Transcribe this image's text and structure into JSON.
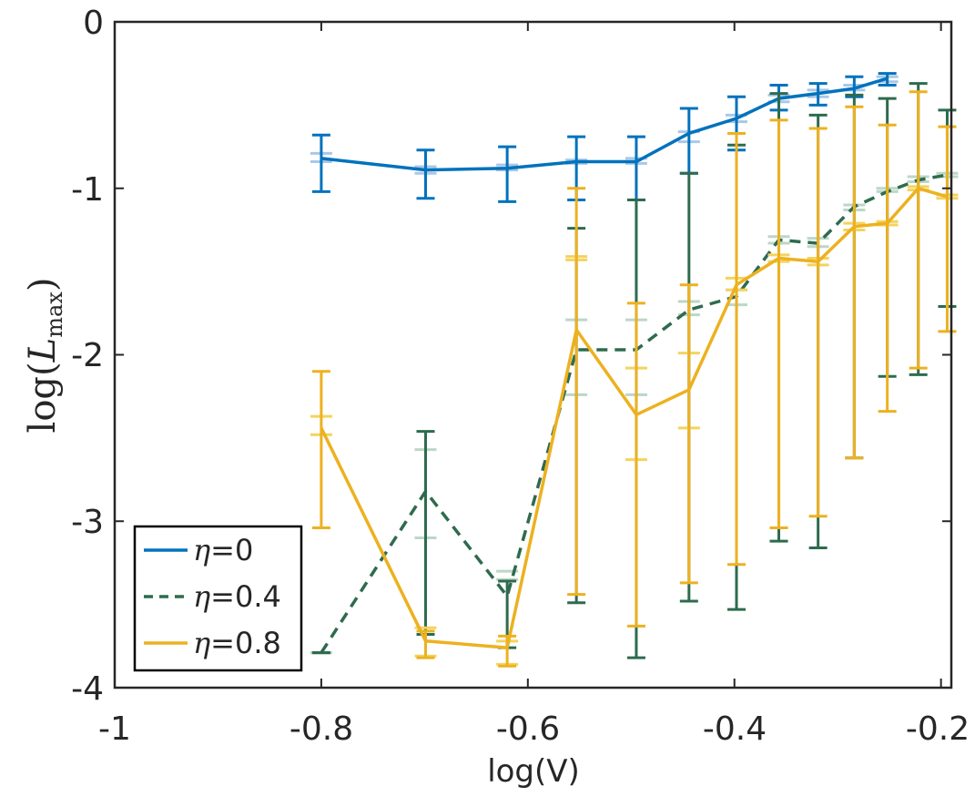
{
  "chart_data": {
    "type": "line",
    "title": "",
    "xlabel": "log(V)",
    "ylabel": {
      "func": "log",
      "var": "L",
      "sub": "max"
    },
    "xlim": [
      -1,
      -0.19
    ],
    "ylim": [
      -4,
      0
    ],
    "xticks": [
      -1,
      -0.8,
      -0.6,
      -0.4,
      -0.2
    ],
    "xtick_labels": [
      "-1",
      "-0.8",
      "-0.6",
      "-0.4",
      "-0.2"
    ],
    "yticks": [
      0,
      -1,
      -2,
      -3,
      -4
    ],
    "ytick_labels": [
      "0",
      "-1",
      "-2",
      "-3",
      "-4"
    ],
    "grid": false,
    "legend_position": "bottom-left",
    "series": [
      {
        "name": "η=0",
        "legend_eta": "η",
        "legend_value": "=0",
        "color": "#0072BD",
        "light_color": "#A9C8E8",
        "dash": "solid",
        "x": [
          -0.8,
          -0.699,
          -0.62,
          -0.553,
          -0.495,
          -0.444,
          -0.398,
          -0.357,
          -0.319,
          -0.284,
          -0.252
        ],
        "y": [
          -0.82,
          -0.89,
          -0.88,
          -0.84,
          -0.84,
          -0.67,
          -0.58,
          -0.46,
          -0.43,
          -0.4,
          -0.34
        ],
        "err_low": [
          -1.02,
          -1.06,
          -1.08,
          -1.07,
          -1.07,
          -0.91,
          -0.77,
          -0.53,
          -0.5,
          -0.45,
          -0.38
        ],
        "err_high": [
          -0.68,
          -0.77,
          -0.75,
          -0.69,
          -0.69,
          -0.52,
          -0.45,
          -0.38,
          -0.37,
          -0.33,
          -0.31
        ],
        "q_low": [
          -0.84,
          -0.91,
          -0.89,
          -0.85,
          -0.85,
          -0.72,
          -0.6,
          -0.48,
          -0.45,
          -0.41,
          -0.36
        ],
        "q_high": [
          -0.79,
          -0.87,
          -0.86,
          -0.83,
          -0.82,
          -0.66,
          -0.56,
          -0.44,
          -0.41,
          -0.38,
          -0.33
        ]
      },
      {
        "name": "η=0.4",
        "legend_eta": "η",
        "legend_value": "=0.4",
        "color": "#2E6B4E",
        "light_color": "#BCD7C6",
        "dash": "dashed",
        "x": [
          -0.8,
          -0.699,
          -0.62,
          -0.553,
          -0.495,
          -0.444,
          -0.398,
          -0.357,
          -0.319,
          -0.284,
          -0.252,
          -0.222,
          -0.194
        ],
        "y": [
          -3.79,
          -2.82,
          -3.45,
          -1.97,
          -1.97,
          -1.73,
          -1.65,
          -1.31,
          -1.33,
          -1.11,
          -1.02,
          -0.95,
          -0.92
        ],
        "err_low": [
          -3.79,
          -3.68,
          -3.76,
          -3.49,
          -3.82,
          -3.48,
          -3.53,
          -3.12,
          -3.16,
          -2.62,
          -2.13,
          -2.12,
          -1.71
        ],
        "err_high": [
          -3.79,
          -2.46,
          -3.36,
          -1.24,
          -1.07,
          -0.91,
          -0.74,
          -0.43,
          -0.56,
          -0.44,
          -0.46,
          -0.37,
          -0.53
        ],
        "q_low": [
          -3.79,
          -3.1,
          -3.35,
          -2.24,
          -2.24,
          -1.76,
          -1.7,
          -1.33,
          -1.35,
          -1.13,
          -1.02,
          -0.96,
          -0.93
        ],
        "q_high": [
          -3.79,
          -2.57,
          -3.3,
          -1.79,
          -1.79,
          -1.68,
          -1.61,
          -1.29,
          -1.3,
          -1.1,
          -1.0,
          -0.93,
          -0.91
        ]
      },
      {
        "name": "η=0.8",
        "legend_eta": "η",
        "legend_value": "=0.8",
        "color": "#EDB120",
        "light_color": "#F4D35E",
        "dash": "solid",
        "x": [
          -0.8,
          -0.699,
          -0.62,
          -0.553,
          -0.495,
          -0.444,
          -0.398,
          -0.357,
          -0.319,
          -0.284,
          -0.252,
          -0.222,
          -0.194
        ],
        "y": [
          -2.44,
          -3.72,
          -3.76,
          -1.85,
          -2.36,
          -2.21,
          -1.58,
          -1.42,
          -1.44,
          -1.23,
          -1.21,
          -1.0,
          -1.05
        ],
        "err_low": [
          -3.04,
          -3.82,
          -3.87,
          -3.44,
          -3.63,
          -3.37,
          -3.26,
          -3.04,
          -2.97,
          -2.62,
          -2.34,
          -2.08,
          -1.86
        ],
        "err_high": [
          -2.1,
          -3.66,
          -3.69,
          -1.0,
          -1.69,
          -1.58,
          -0.67,
          -0.59,
          -0.64,
          -0.51,
          -0.62,
          -0.42,
          -0.63
        ],
        "q_low": [
          -2.48,
          -3.81,
          -3.86,
          -1.43,
          -2.63,
          -2.44,
          -1.61,
          -1.44,
          -1.46,
          -1.25,
          -1.22,
          -1.01,
          -1.06
        ],
        "q_high": [
          -2.37,
          -3.64,
          -3.72,
          -1.41,
          -2.08,
          -1.99,
          -1.54,
          -1.4,
          -1.42,
          -1.21,
          -1.2,
          -0.99,
          -1.04
        ]
      }
    ]
  }
}
